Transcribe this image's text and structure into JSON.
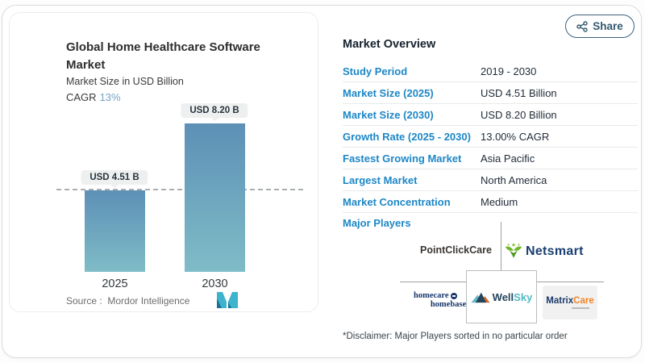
{
  "share": {
    "label": "Share"
  },
  "chart_panel": {
    "title": "Global Home Healthcare Software Market",
    "subtitle": "Market Size in USD Billion",
    "cagr_label": "CAGR",
    "cagr_value": "13%",
    "source_label": "Source :",
    "source_value": "Mordor Intelligence"
  },
  "chart_data": {
    "type": "bar",
    "categories": [
      "2025",
      "2030"
    ],
    "values": [
      4.51,
      8.2
    ],
    "bar_labels": [
      "USD 4.51 B",
      "USD 8.20 B"
    ],
    "title": "Global Home Healthcare Software Market",
    "ylabel": "Market Size in USD Billion",
    "ylim": [
      0,
      9.3
    ],
    "grid": false,
    "annotations": [
      "dashed reference line at 2025 value"
    ],
    "colors": {
      "bar_gradient_top": "#5d90b6",
      "bar_gradient_bottom": "#7fbcc7"
    }
  },
  "overview": {
    "heading": "Market Overview",
    "rows": [
      {
        "label": "Study Period",
        "value": "2019 - 2030"
      },
      {
        "label": "Market Size (2025)",
        "value": "USD 4.51 Billion"
      },
      {
        "label": "Market Size (2030)",
        "value": "USD 8.20 Billion"
      },
      {
        "label": "Growth Rate (2025 - 2030)",
        "value": "13.00% CAGR"
      },
      {
        "label": "Fastest Growing Market",
        "value": "Asia Pacific"
      },
      {
        "label": "Largest Market",
        "value": "North America"
      },
      {
        "label": "Market Concentration",
        "value": "Medium"
      }
    ],
    "major_players_label": "Major Players",
    "players": {
      "pointclickcare": {
        "text": "PointClickCare"
      },
      "netsmart": {
        "text": "Netsmart"
      },
      "homecare_homebase": {
        "line1": "homecare",
        "line2": "homebase"
      },
      "wellsky": {
        "part1": "Well",
        "part2": "Sky"
      },
      "matrixcare": {
        "part1": "Matrix",
        "part2": "Care"
      }
    },
    "disclaimer": "*Disclaimer: Major Players sorted in no particular order"
  },
  "colors": {
    "accent_blue": "#1d87c6",
    "heading_navy": "#16222e",
    "share_navy": "#32586f",
    "mi_teal": "#3cb4cc"
  }
}
